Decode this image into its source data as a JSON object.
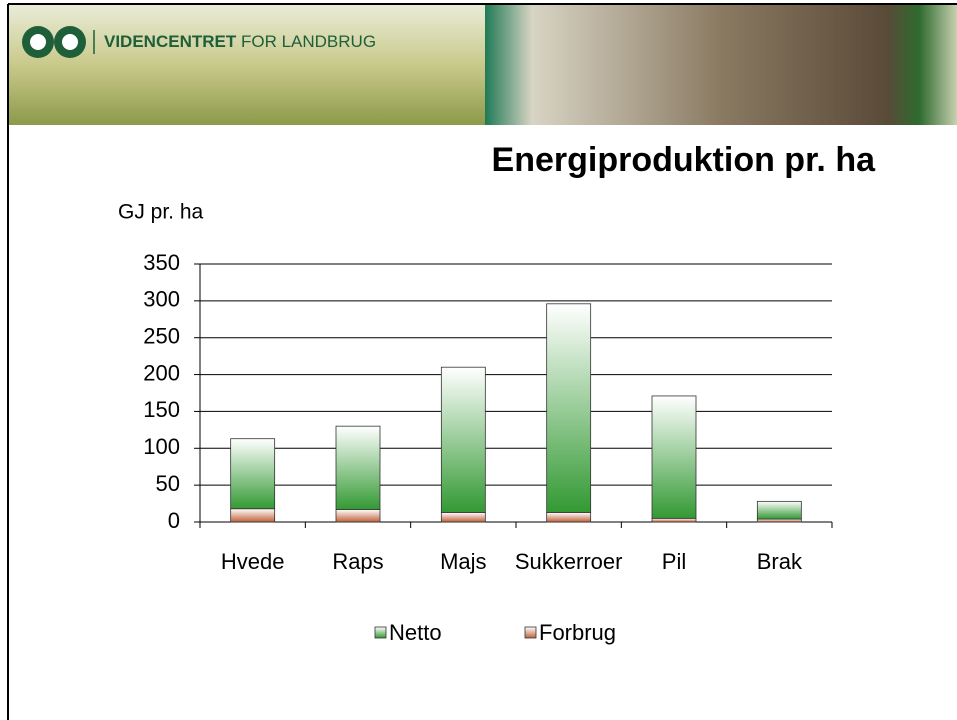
{
  "header": {
    "brand_bold": "VIDENCENTRET",
    "brand_rest": "FOR LANDBRUG"
  },
  "chart_data": {
    "type": "bar",
    "stacked": true,
    "title": "Energiproduktion pr. ha",
    "y_label": "GJ pr. ha",
    "categories": [
      "Hvede",
      "Raps",
      "Majs",
      "Sukkerroer",
      "Pil",
      "Brak"
    ],
    "series": [
      {
        "name": "Forbrug",
        "color": "#c0623a",
        "values": [
          18,
          17,
          13,
          13,
          5,
          4
        ]
      },
      {
        "name": "Netto",
        "color": "#339933",
        "values": [
          95,
          113,
          197,
          283,
          166,
          24
        ]
      }
    ],
    "legend_order": [
      1,
      0
    ],
    "ylim": [
      0,
      350
    ],
    "yticks": [
      0,
      50,
      100,
      150,
      200,
      250,
      300,
      350
    ],
    "grid": true
  }
}
